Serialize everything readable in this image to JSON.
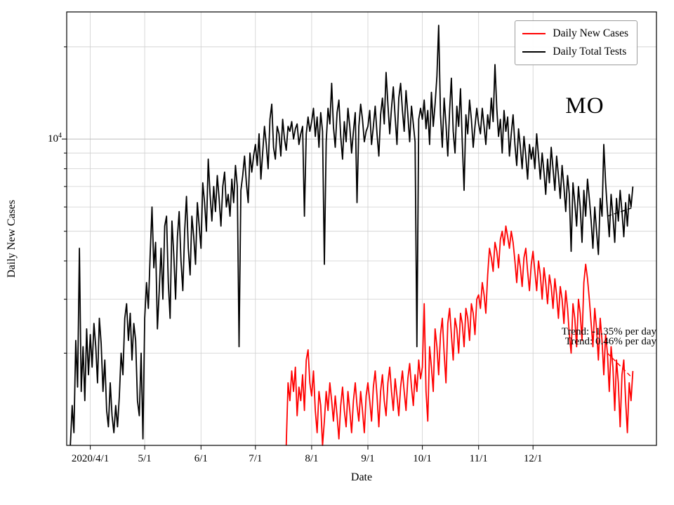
{
  "figure": {
    "state_label": "MO",
    "y_axis_label": "Daily New Cases",
    "x_axis_label": "Date",
    "y_major_tick": {
      "base": "10",
      "exponent": "4"
    },
    "annotations": {
      "trend_line_1": "Trend: -1.35% per day",
      "trend_line_2": "Trend: 0.46% per day"
    },
    "legend": {
      "items": [
        {
          "label": "Daily New Cases",
          "color": "#ff0000"
        },
        {
          "label": "Daily Total Tests",
          "color": "#000000"
        }
      ]
    }
  },
  "chart_data": {
    "type": "line",
    "title": "",
    "xlabel": "Date",
    "ylabel": "Daily New Cases",
    "y_scale": "log",
    "ylim": [
      1000,
      26000
    ],
    "x_unit": "days since 2020-04-01",
    "xlim": [
      -13,
      312
    ],
    "grid": true,
    "legend_position": "upper right",
    "x_ticks": [
      {
        "day": 0,
        "label": "2020/4/1"
      },
      {
        "day": 30,
        "label": "5/1"
      },
      {
        "day": 61,
        "label": "6/1"
      },
      {
        "day": 91,
        "label": "7/1"
      },
      {
        "day": 122,
        "label": "8/1"
      },
      {
        "day": 153,
        "label": "9/1"
      },
      {
        "day": 183,
        "label": "10/1"
      },
      {
        "day": 214,
        "label": "11/1"
      },
      {
        "day": 244,
        "label": "12/1"
      }
    ],
    "y_ticks": {
      "major": [
        10000
      ],
      "major_labels": [
        "10^4"
      ],
      "minor": [
        2000,
        3000,
        4000,
        5000,
        6000,
        7000,
        8000,
        9000,
        20000
      ]
    },
    "series": [
      {
        "name": "Daily New Cases",
        "color": "#ff0000",
        "start_day": 108,
        "daily_values": [
          1000,
          1600,
          1400,
          1750,
          1500,
          1800,
          1250,
          1550,
          1400,
          1700,
          1300,
          1900,
          2050,
          1600,
          1450,
          1750,
          1300,
          1100,
          1500,
          1350,
          1000,
          1200,
          1500,
          1300,
          1600,
          1400,
          1200,
          1450,
          1250,
          1050,
          1350,
          1550,
          1300,
          1150,
          1500,
          1300,
          1100,
          1400,
          1600,
          1350,
          1200,
          1500,
          1300,
          1100,
          1450,
          1600,
          1400,
          1200,
          1550,
          1750,
          1450,
          1150,
          1500,
          1700,
          1400,
          1250,
          1600,
          1800,
          1500,
          1300,
          1650,
          1450,
          1250,
          1550,
          1750,
          1500,
          1300,
          1650,
          1850,
          1550,
          1350,
          1700,
          1500,
          1900,
          1650,
          1800,
          2900,
          1500,
          1200,
          2100,
          1800,
          1500,
          2400,
          2100,
          1700,
          2300,
          2600,
          2000,
          1600,
          2500,
          2800,
          2300,
          1900,
          2600,
          2400,
          2000,
          2700,
          2500,
          2100,
          2800,
          2600,
          2200,
          2900,
          2700,
          2300,
          3000,
          3100,
          2800,
          3400,
          3100,
          2700,
          3600,
          4400,
          4100,
          3700,
          4600,
          4300,
          3800,
          4700,
          5000,
          4500,
          5200,
          4800,
          4400,
          5000,
          4600,
          4000,
          3400,
          4200,
          3800,
          3300,
          4100,
          4400,
          3700,
          3200,
          3900,
          4300,
          3700,
          3200,
          4000,
          3600,
          3000,
          3800,
          3400,
          2900,
          3600,
          3300,
          2800,
          3500,
          3100,
          2600,
          3300,
          3000,
          2500,
          3200,
          2800,
          2300,
          2000,
          2900,
          2600,
          2100,
          3000,
          2700,
          2200,
          3400,
          3900,
          3500,
          3000,
          2500,
          2100,
          2800,
          2400,
          1900,
          2600,
          2200,
          1700,
          2300,
          2000,
          1500,
          2100,
          1800,
          1300,
          1900,
          1600,
          1150,
          1700,
          1900,
          1400,
          1100,
          1600,
          1400,
          1750
        ]
      },
      {
        "name": "Daily Total Tests",
        "color": "#000000",
        "start_day": -11,
        "daily_values": [
          1000,
          1350,
          1100,
          2200,
          1550,
          4400,
          1500,
          2100,
          1400,
          2400,
          1700,
          2300,
          1800,
          2500,
          2100,
          1600,
          2600,
          2150,
          1500,
          1900,
          1300,
          1150,
          1600,
          1250,
          1100,
          1350,
          1150,
          1450,
          2000,
          1700,
          2600,
          2900,
          2200,
          2700,
          1900,
          2500,
          2200,
          1400,
          1250,
          2000,
          1050,
          2600,
          3400,
          2800,
          4200,
          6000,
          3800,
          4600,
          2400,
          3200,
          4400,
          3000,
          5200,
          5600,
          3400,
          2600,
          5400,
          4200,
          3000,
          4800,
          5800,
          4000,
          3200,
          5000,
          6500,
          4400,
          3600,
          5600,
          4800,
          3900,
          6200,
          5200,
          4400,
          7200,
          6200,
          5000,
          8600,
          6600,
          5400,
          7000,
          5800,
          7600,
          6400,
          5200,
          7000,
          7800,
          6000,
          6600,
          5600,
          7400,
          6200,
          8200,
          7000,
          2100,
          6800,
          7600,
          8800,
          7200,
          6200,
          9000,
          7800,
          8800,
          9600,
          8200,
          10400,
          7400,
          9000,
          11000,
          9600,
          8000,
          11600,
          13000,
          9400,
          8600,
          11000,
          10400,
          8800,
          11600,
          10000,
          9200,
          11000,
          10600,
          11400,
          10000,
          10800,
          11200,
          9600,
          10400,
          11000,
          5600,
          10400,
          11800,
          10600,
          11400,
          12600,
          10200,
          11800,
          9400,
          12200,
          10600,
          3900,
          9800,
          12600,
          11200,
          15200,
          11000,
          9400,
          12200,
          13400,
          10200,
          8600,
          11400,
          9800,
          12600,
          11000,
          9000,
          10600,
          12200,
          6200,
          11000,
          13000,
          11600,
          9800,
          10600,
          11000,
          12400,
          9600,
          11000,
          12800,
          10400,
          8800,
          12000,
          13600,
          11200,
          16500,
          13000,
          10400,
          12600,
          14800,
          11800,
          9600,
          13600,
          15200,
          12400,
          10600,
          14400,
          12000,
          9800,
          12800,
          11200,
          9800,
          2100,
          11600,
          12600,
          11600,
          13400,
          10800,
          12400,
          9600,
          14200,
          11000,
          13000,
          16000,
          23500,
          12000,
          9400,
          13600,
          11200,
          8800,
          12400,
          15800,
          10600,
          9000,
          12800,
          11000,
          14600,
          9800,
          6800,
          12000,
          10400,
          13400,
          11600,
          9400,
          11000,
          12600,
          11200,
          10400,
          12600,
          11000,
          9600,
          12000,
          10800,
          13600,
          11400,
          17500,
          12600,
          10200,
          11600,
          9000,
          12400,
          10600,
          11800,
          8800,
          10400,
          12000,
          9600,
          8200,
          10800,
          9400,
          8000,
          10200,
          8800,
          7400,
          9600,
          8600,
          9400,
          8000,
          10400,
          8800,
          7400,
          9000,
          7800,
          6600,
          8600,
          7200,
          9400,
          8000,
          6800,
          8800,
          7600,
          6400,
          8200,
          7000,
          5800,
          7600,
          6600,
          4300,
          7200,
          6200,
          5200,
          7000,
          6000,
          4600,
          6800,
          5600,
          7400,
          6400,
          5400,
          4400,
          6000,
          5000,
          4200,
          6400,
          5600,
          9600,
          7200,
          5800,
          4800,
          6600,
          5600,
          4600,
          6400,
          5400,
          6800,
          5800,
          4800,
          6200,
          5200,
          6600,
          6000,
          7000
        ]
      }
    ],
    "trend_lines": [
      {
        "series": "Daily New Cases",
        "color": "#ff0000",
        "rate_percent_per_day": -1.35,
        "label": "Trend: -1.35% per day",
        "start_day": 285,
        "end_day": 299,
        "start_value": 2000
      },
      {
        "series": "Daily Total Tests",
        "color": "#000000",
        "rate_percent_per_day": 0.46,
        "label": "Trend: 0.46% per day",
        "start_day": 285,
        "end_day": 299,
        "start_value": 5600
      }
    ]
  }
}
